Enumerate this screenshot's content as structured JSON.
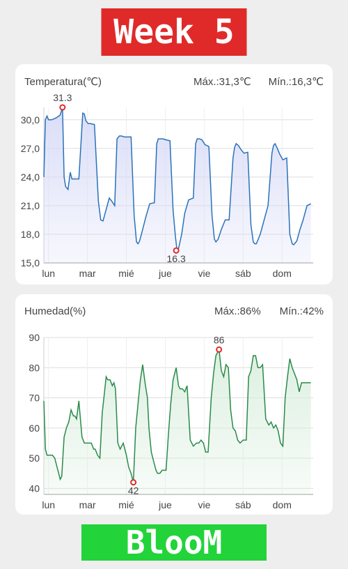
{
  "header": {
    "title": "Week 5"
  },
  "footer": {
    "brand": "BlooM"
  },
  "temperature": {
    "title": "Temperatura(℃)",
    "max_label": "Máx.:31,3℃",
    "min_label": "Mín.:16,3℃",
    "max_point_label": "31.3",
    "min_point_label": "16.3",
    "color": "#2a72b8",
    "fill": "#d6daf7"
  },
  "humidity": {
    "title": "Humedad(%)",
    "max_label": "Máx.:86%",
    "min_label": "Mín.:42%",
    "max_point_label": "86",
    "min_point_label": "42",
    "color": "#2a8a4a",
    "fill": "#d9eedd"
  },
  "chart_data": [
    {
      "type": "area",
      "title": "Temperatura(℃)",
      "categories": [
        "lun",
        "mar",
        "mié",
        "jue",
        "vie",
        "sáb",
        "dom"
      ],
      "ylim": [
        15,
        31.3
      ],
      "yticks": [
        "15,0",
        "18,0",
        "21,0",
        "24,0",
        "27,0",
        "30,0"
      ],
      "grid": true,
      "max": {
        "x": 0.48,
        "value": 31.3
      },
      "min": {
        "x": 3.4,
        "value": 16.3
      },
      "series": [
        {
          "x": [
            0,
            0.04,
            0.08,
            0.12,
            0.2,
            0.32,
            0.42,
            0.48,
            0.52,
            0.56,
            0.62,
            0.68,
            0.72,
            0.76,
            0.8,
            0.9,
            1.0,
            1.04,
            1.08,
            1.14,
            1.2,
            1.3,
            1.4,
            1.46,
            1.52,
            1.6,
            1.68,
            1.74,
            1.82,
            1.88,
            1.94,
            2.0,
            2.06,
            2.14,
            2.24,
            2.32,
            2.38,
            2.42,
            2.46,
            2.52,
            2.62,
            2.72,
            2.84,
            2.9,
            2.94,
            3.0,
            3.06,
            3.14,
            3.24,
            3.32,
            3.38,
            3.42,
            3.46,
            3.54,
            3.62,
            3.72,
            3.84,
            3.9,
            3.94,
            4.0,
            4.06,
            4.14,
            4.24,
            4.32,
            4.38,
            4.42,
            4.48,
            4.56,
            4.66,
            4.76,
            4.86,
            4.9,
            4.94,
            5.0,
            5.06,
            5.14,
            5.24,
            5.32,
            5.38,
            5.42,
            5.46,
            5.56,
            5.66,
            5.76,
            5.86,
            5.9,
            5.94,
            6.0,
            6.06,
            6.14,
            6.24,
            6.32,
            6.38,
            6.42,
            6.5,
            6.58,
            6.66,
            6.76,
            6.86
          ],
          "values": [
            24.0,
            30.0,
            30.4,
            30.0,
            30.0,
            30.2,
            30.5,
            31.3,
            24.0,
            23.0,
            22.7,
            24.5,
            23.8,
            23.8,
            23.8,
            23.8,
            30.7,
            30.6,
            29.9,
            29.6,
            29.6,
            29.5,
            21.5,
            19.5,
            19.4,
            20.6,
            21.8,
            21.5,
            21.0,
            28.0,
            28.3,
            28.3,
            28.2,
            28.2,
            28.2,
            20.0,
            17.2,
            17.0,
            17.3,
            18.2,
            19.8,
            21.2,
            21.3,
            27.5,
            28.0,
            28.0,
            28.0,
            27.9,
            27.8,
            20.5,
            17.8,
            16.3,
            16.5,
            18.0,
            20.2,
            21.6,
            21.8,
            27.5,
            28.0,
            28.0,
            27.9,
            27.4,
            27.2,
            20.0,
            17.5,
            17.2,
            17.5,
            18.5,
            19.5,
            19.5,
            26.0,
            27.1,
            27.5,
            27.3,
            26.9,
            26.5,
            26.6,
            19.0,
            17.2,
            17.0,
            17.0,
            18.0,
            19.5,
            21.0,
            26.5,
            27.3,
            27.5,
            27.0,
            26.4,
            25.8,
            26.0,
            18.0,
            17.0,
            16.9,
            17.3,
            18.5,
            19.5,
            21.0,
            21.2
          ]
        }
      ]
    },
    {
      "type": "area",
      "title": "Humedad(%)",
      "categories": [
        "lun",
        "mar",
        "mié",
        "jue",
        "vie",
        "sáb",
        "dom"
      ],
      "ylim": [
        38,
        90
      ],
      "yticks": [
        "40",
        "50",
        "60",
        "70",
        "80",
        "90"
      ],
      "grid": true,
      "max": {
        "x": 4.5,
        "value": 86
      },
      "min": {
        "x": 2.3,
        "value": 42
      },
      "series": [
        {
          "x": [
            0,
            0.04,
            0.08,
            0.14,
            0.22,
            0.28,
            0.34,
            0.38,
            0.42,
            0.46,
            0.52,
            0.58,
            0.64,
            0.7,
            0.76,
            0.8,
            0.84,
            0.9,
            0.98,
            1.04,
            1.1,
            1.16,
            1.22,
            1.28,
            1.32,
            1.38,
            1.44,
            1.5,
            1.56,
            1.6,
            1.64,
            1.7,
            1.76,
            1.8,
            1.84,
            1.9,
            1.96,
            2.04,
            2.12,
            2.18,
            2.24,
            2.3,
            2.36,
            2.42,
            2.48,
            2.54,
            2.6,
            2.66,
            2.7,
            2.76,
            2.82,
            2.88,
            2.92,
            2.98,
            3.04,
            3.1,
            3.14,
            3.2,
            3.26,
            3.32,
            3.4,
            3.46,
            3.5,
            3.56,
            3.62,
            3.68,
            3.76,
            3.84,
            3.92,
            3.98,
            4.04,
            4.1,
            4.16,
            4.22,
            4.3,
            4.36,
            4.42,
            4.5,
            4.56,
            4.62,
            4.68,
            4.74,
            4.8,
            4.86,
            4.92,
            4.98,
            5.04,
            5.12,
            5.2,
            5.26,
            5.32,
            5.38,
            5.44,
            5.5,
            5.56,
            5.62,
            5.7,
            5.78,
            5.84,
            5.9,
            5.96,
            6.02,
            6.08,
            6.14,
            6.2,
            6.26,
            6.32,
            6.38,
            6.44,
            6.5,
            6.56,
            6.62,
            6.68,
            6.74,
            6.8,
            6.86
          ],
          "values": [
            69,
            53,
            51,
            51,
            51,
            50,
            47,
            45,
            43,
            44,
            57,
            60,
            62,
            66,
            64,
            64,
            63,
            69,
            57,
            55,
            55,
            55,
            55,
            53,
            53,
            51,
            50,
            65,
            72,
            77,
            76,
            76,
            74,
            75,
            73,
            55,
            53,
            55,
            51,
            47,
            45,
            42,
            60,
            68,
            76,
            81,
            75,
            70,
            60,
            52,
            49,
            46,
            45,
            45,
            46,
            46,
            46,
            58,
            68,
            76,
            80,
            74,
            73,
            73,
            72,
            74,
            56,
            54,
            55,
            55,
            56,
            55,
            52,
            52,
            70,
            78,
            84,
            86,
            79,
            77,
            81,
            80,
            66,
            60,
            59,
            56,
            55,
            56,
            56,
            77,
            79,
            84,
            84,
            80,
            80,
            81,
            63,
            61,
            62,
            60,
            61,
            59,
            55,
            54,
            70,
            77,
            83,
            80,
            78,
            76,
            72,
            75,
            75,
            75,
            75,
            75
          ]
        }
      ]
    }
  ]
}
